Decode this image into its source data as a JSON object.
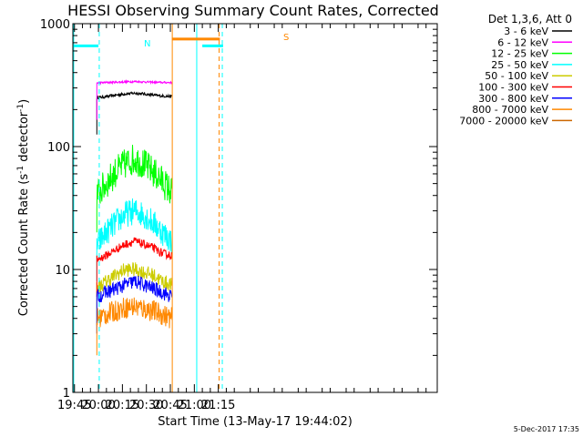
{
  "chart_data": {
    "type": "line",
    "title": "HESSI Observing Summary Count Rates, Corrected",
    "xlabel": "Start Time (13-May-17 19:44:02)",
    "ylabel": "Corrected Count Rate (s⁻¹ detector⁻¹)",
    "ylabel_parts": {
      "a": "Corrected Count Rate (s",
      "b": "-1",
      "c": " detector",
      "d": "-1",
      "e": ")"
    },
    "y_scale": "log",
    "ylim": [
      1,
      1000
    ],
    "y_ticks": [
      {
        "v": 1,
        "label": "1"
      },
      {
        "v": 10,
        "label": "10"
      },
      {
        "v": 100,
        "label": "100"
      },
      {
        "v": 1000,
        "label": "1000"
      }
    ],
    "xlim_min": [
      1184,
      1412
    ],
    "x_ticks": [
      {
        "m": 1185,
        "label": "19:45"
      },
      {
        "m": 1200,
        "label": "20:00"
      },
      {
        "m": 1215,
        "label": "20:15"
      },
      {
        "m": 1230,
        "label": "20:30"
      },
      {
        "m": 1245,
        "label": "20:45"
      },
      {
        "m": 1260,
        "label": "21:00"
      },
      {
        "m": 1275,
        "label": "21:15"
      }
    ],
    "legend": {
      "placement": "outside-right",
      "header": "Det 1,3,6, Att 0",
      "items": [
        {
          "label": "3 - 6 keV",
          "color": "#000000"
        },
        {
          "label": "6 - 12 keV",
          "color": "#ff00ff"
        },
        {
          "label": "12 - 25 keV",
          "color": "#00ff00"
        },
        {
          "label": "25 - 50 keV",
          "color": "#00ffff"
        },
        {
          "label": "50 - 100 keV",
          "color": "#cccc00"
        },
        {
          "label": "100 - 300 keV",
          "color": "#ff0000"
        },
        {
          "label": "300 - 800 keV",
          "color": "#0000ff"
        },
        {
          "label": "800 - 7000 keV",
          "color": "#ff8800"
        },
        {
          "label": "7000 - 20000 keV",
          "color": "#cc6600"
        }
      ]
    },
    "observation": {
      "start_min": 1199,
      "end_min": 1246
    },
    "series": [
      {
        "color": "#000000",
        "values": [
          250,
          255,
          262,
          268,
          272,
          268,
          262,
          258,
          256
        ]
      },
      {
        "color": "#ff00ff",
        "values": [
          330,
          332,
          334,
          336,
          338,
          336,
          334,
          332,
          332
        ]
      },
      {
        "color": "#00ff00",
        "values": [
          40,
          50,
          62,
          72,
          80,
          72,
          62,
          52,
          42
        ]
      },
      {
        "color": "#00ffff",
        "values": [
          16,
          20,
          24,
          28,
          30,
          28,
          24,
          20,
          17
        ]
      },
      {
        "color": "#cccc00",
        "values": [
          7,
          8,
          9,
          10,
          10,
          9.5,
          9,
          8,
          7.5
        ]
      },
      {
        "color": "#ff0000",
        "values": [
          12,
          13,
          14.5,
          16,
          17,
          16,
          15,
          13.5,
          13
        ]
      },
      {
        "color": "#0000ff",
        "values": [
          6,
          6.5,
          7,
          7.5,
          8,
          7.5,
          7,
          6.5,
          6
        ]
      },
      {
        "color": "#ff8800",
        "values": [
          4,
          4.3,
          4.6,
          4.9,
          5,
          4.8,
          4.6,
          4.3,
          4
        ]
      }
    ],
    "annotations": {
      "night_color": "#00ffff",
      "saa_color": "#ff8800",
      "night_segments": [
        {
          "x0": 1184,
          "x1": 1200,
          "y": 660
        },
        {
          "x0": 1265,
          "x1": 1278,
          "y": 660
        }
      ],
      "saa_segments": [
        {
          "x0": 1246,
          "x1": 1276,
          "y": 750
        }
      ],
      "night_marker": "N",
      "saa_marker": "S",
      "solid_lines": [
        {
          "x": 1184.5,
          "color": "#00ffff"
        },
        {
          "x": 1261.5,
          "color": "#00ffff"
        },
        {
          "x": 1246.2,
          "color": "#ff8800"
        }
      ],
      "dashed_lines": [
        {
          "x": 1200.5,
          "color": "#00ffff"
        },
        {
          "x": 1277.5,
          "color": "#00ffff"
        },
        {
          "x": 1275.5,
          "color": "#ff8800"
        }
      ]
    }
  },
  "footer": {
    "date": "5-Dec-2017 17:35"
  }
}
